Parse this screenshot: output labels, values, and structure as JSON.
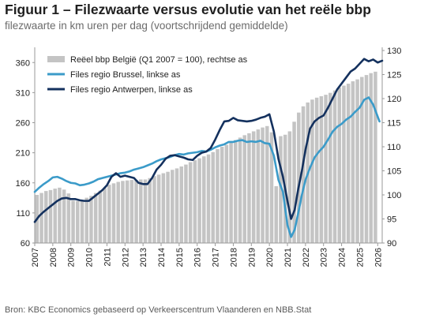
{
  "title": "Figuur 1 – Filezwaarte versus evolutie van het reële bbp",
  "subtitle": "filezwaarte in km uren per dag (voortschrijdend gemiddelde)",
  "source": "Bron: KBC Economics gebaseerd op Verkeerscentrum Vlaanderen en NBB.Stat",
  "colors": {
    "bars": "#c4c4c4",
    "brussel": "#3b9bc9",
    "antwerpen": "#14315e"
  },
  "chart_data": {
    "type": "bar+line",
    "title": "Figuur 1 – Filezwaarte versus evolutie van het reële bbp",
    "subtitle": "filezwaarte in km uren per dag (voortschrijdend gemiddelde)",
    "x_tick_labels": [
      "2007",
      "2008",
      "2009",
      "2010",
      "2011",
      "2012",
      "2013",
      "2014",
      "2015",
      "2016",
      "2017",
      "2018",
      "2019",
      "2020",
      "2021",
      "2022",
      "2023",
      "2024",
      "2025",
      "2026"
    ],
    "x_range": [
      2007.0,
      2026.25
    ],
    "left_axis": {
      "range": [
        60,
        380
      ],
      "ticks": [
        60,
        110,
        160,
        210,
        260,
        310,
        360
      ]
    },
    "right_axis": {
      "range": [
        90,
        130
      ],
      "ticks": [
        90,
        95,
        100,
        105,
        110,
        115,
        120,
        125,
        130
      ]
    },
    "legend_position": "top-left",
    "series": [
      {
        "name": "Reëel bbp België (Q1 2007 = 100), rechtse as",
        "type": "bar",
        "axis": "right",
        "x": [
          2007.0,
          2007.25,
          2007.5,
          2007.75,
          2008.0,
          2008.25,
          2008.5,
          2008.75,
          2009.0,
          2009.25,
          2009.5,
          2009.75,
          2010.0,
          2010.25,
          2010.5,
          2010.75,
          2011.0,
          2011.25,
          2011.5,
          2011.75,
          2012.0,
          2012.25,
          2012.5,
          2012.75,
          2013.0,
          2013.25,
          2013.5,
          2013.75,
          2014.0,
          2014.25,
          2014.5,
          2014.75,
          2015.0,
          2015.25,
          2015.5,
          2015.75,
          2016.0,
          2016.25,
          2016.5,
          2016.75,
          2017.0,
          2017.25,
          2017.5,
          2017.75,
          2018.0,
          2018.25,
          2018.5,
          2018.75,
          2019.0,
          2019.25,
          2019.5,
          2019.75,
          2020.0,
          2020.25,
          2020.5,
          2020.75,
          2021.0,
          2021.25,
          2021.5,
          2021.75,
          2022.0,
          2022.25,
          2022.5,
          2022.75,
          2023.0,
          2023.25,
          2023.5,
          2023.75,
          2024.0,
          2024.25,
          2024.5,
          2024.75,
          2025.0,
          2025.25,
          2025.5,
          2025.75
        ],
        "values": [
          100.0,
          100.4,
          100.8,
          101.0,
          101.3,
          101.5,
          101.1,
          100.3,
          98.8,
          98.7,
          98.9,
          99.4,
          99.8,
          100.4,
          100.9,
          101.4,
          102.1,
          102.4,
          102.7,
          102.9,
          103.0,
          103.1,
          103.1,
          103.2,
          103.2,
          103.5,
          103.9,
          104.2,
          104.5,
          104.8,
          105.2,
          105.5,
          105.9,
          106.3,
          106.8,
          107.2,
          107.6,
          108.0,
          108.4,
          108.9,
          109.5,
          110.0,
          110.4,
          110.9,
          111.4,
          111.9,
          112.4,
          112.8,
          113.2,
          113.6,
          114.0,
          114.3,
          113.0,
          101.8,
          112.2,
          112.5,
          113.2,
          115.2,
          117.1,
          118.4,
          119.2,
          119.8,
          120.2,
          120.5,
          120.8,
          121.2,
          121.7,
          122.3,
          122.7,
          123.1,
          123.6,
          124.0,
          124.5,
          124.9,
          125.3,
          125.6
        ]
      },
      {
        "name": "Files regio Brussel, linkse as",
        "type": "line",
        "axis": "left",
        "x": [
          2007.0,
          2007.25,
          2007.5,
          2007.75,
          2008.0,
          2008.25,
          2008.5,
          2008.75,
          2009.0,
          2009.25,
          2009.5,
          2009.75,
          2010.0,
          2010.25,
          2010.5,
          2010.75,
          2011.0,
          2011.25,
          2011.5,
          2011.75,
          2012.0,
          2012.25,
          2012.5,
          2012.75,
          2013.0,
          2013.25,
          2013.5,
          2013.75,
          2014.0,
          2014.25,
          2014.5,
          2014.75,
          2015.0,
          2015.25,
          2015.5,
          2015.75,
          2016.0,
          2016.25,
          2016.5,
          2016.75,
          2017.0,
          2017.25,
          2017.5,
          2017.75,
          2018.0,
          2018.25,
          2018.5,
          2018.75,
          2019.0,
          2019.25,
          2019.5,
          2019.75,
          2020.0,
          2020.25,
          2020.5,
          2020.75,
          2021.0,
          2021.2,
          2021.4,
          2021.6,
          2021.8,
          2022.0,
          2022.25,
          2022.5,
          2022.75,
          2023.0,
          2023.25,
          2023.5,
          2023.75,
          2024.0,
          2024.25,
          2024.5,
          2024.75,
          2025.0,
          2025.25,
          2025.5,
          2025.75,
          2026.0,
          2026.1
        ],
        "values": [
          145,
          152,
          158,
          163,
          169,
          170,
          167,
          163,
          160,
          159,
          156,
          157,
          159,
          162,
          166,
          168,
          170,
          172,
          174,
          176,
          177,
          179,
          182,
          184,
          186,
          189,
          192,
          196,
          199,
          201,
          203,
          206,
          208,
          207,
          209,
          210,
          211,
          213,
          212,
          215,
          219,
          222,
          224,
          228,
          228,
          230,
          231,
          228,
          229,
          228,
          230,
          226,
          225,
          205,
          165,
          145,
          90,
          70,
          82,
          110,
          140,
          165,
          185,
          202,
          212,
          220,
          232,
          245,
          253,
          258,
          265,
          270,
          278,
          285,
          298,
          302,
          290,
          270,
          262
        ]
      },
      {
        "name": "Files regio Antwerpen, linkse as",
        "type": "line",
        "axis": "left",
        "x": [
          2007.0,
          2007.25,
          2007.5,
          2007.75,
          2008.0,
          2008.25,
          2008.5,
          2008.75,
          2009.0,
          2009.25,
          2009.5,
          2009.75,
          2010.0,
          2010.25,
          2010.5,
          2010.75,
          2011.0,
          2011.25,
          2011.5,
          2011.75,
          2012.0,
          2012.25,
          2012.5,
          2012.75,
          2013.0,
          2013.25,
          2013.5,
          2013.75,
          2014.0,
          2014.25,
          2014.5,
          2014.75,
          2015.0,
          2015.25,
          2015.5,
          2015.75,
          2016.0,
          2016.25,
          2016.5,
          2016.75,
          2017.0,
          2017.25,
          2017.5,
          2017.75,
          2018.0,
          2018.25,
          2018.5,
          2018.75,
          2019.0,
          2019.25,
          2019.5,
          2019.75,
          2020.0,
          2020.25,
          2020.5,
          2020.75,
          2021.0,
          2021.2,
          2021.4,
          2021.6,
          2021.8,
          2022.0,
          2022.25,
          2022.5,
          2022.75,
          2023.0,
          2023.25,
          2023.5,
          2023.75,
          2024.0,
          2024.25,
          2024.5,
          2024.75,
          2025.0,
          2025.25,
          2025.5,
          2025.75,
          2026.0,
          2026.25
        ],
        "values": [
          95,
          105,
          112,
          118,
          124,
          130,
          134,
          135,
          133,
          133,
          131,
          130,
          130,
          136,
          142,
          148,
          156,
          170,
          176,
          170,
          172,
          170,
          168,
          160,
          158,
          158,
          168,
          182,
          190,
          200,
          205,
          206,
          204,
          202,
          199,
          198,
          205,
          210,
          212,
          218,
          232,
          248,
          262,
          263,
          268,
          264,
          263,
          262,
          263,
          265,
          268,
          270,
          274,
          245,
          200,
          170,
          130,
          100,
          115,
          150,
          180,
          215,
          250,
          262,
          268,
          272,
          285,
          300,
          315,
          325,
          335,
          345,
          350,
          358,
          366,
          362,
          365,
          360,
          363
        ]
      }
    ]
  }
}
